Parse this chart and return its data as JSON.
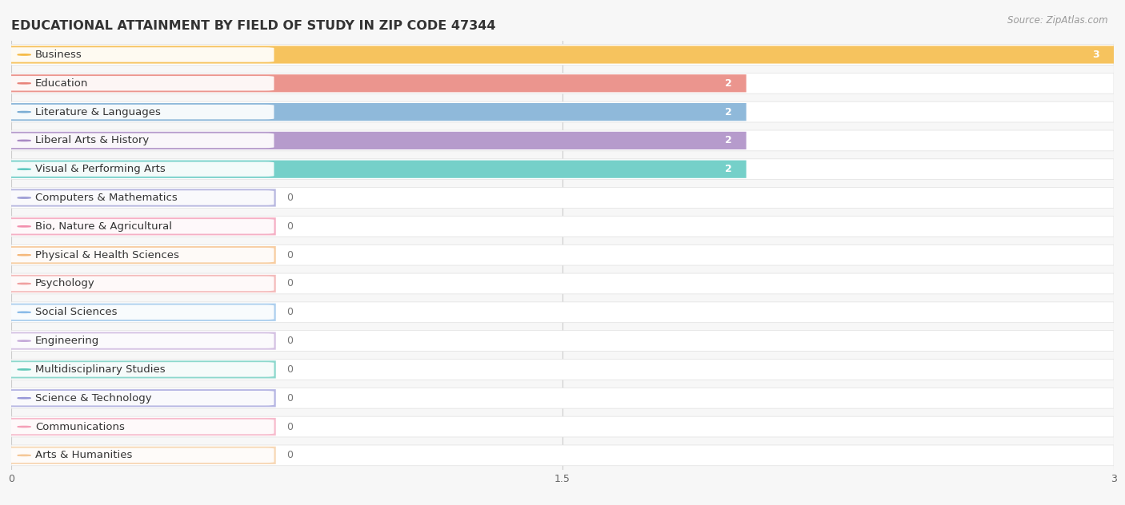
{
  "title": "EDUCATIONAL ATTAINMENT BY FIELD OF STUDY IN ZIP CODE 47344",
  "source": "Source: ZipAtlas.com",
  "categories": [
    "Business",
    "Education",
    "Literature & Languages",
    "Liberal Arts & History",
    "Visual & Performing Arts",
    "Computers & Mathematics",
    "Bio, Nature & Agricultural",
    "Physical & Health Sciences",
    "Psychology",
    "Social Sciences",
    "Engineering",
    "Multidisciplinary Studies",
    "Science & Technology",
    "Communications",
    "Arts & Humanities"
  ],
  "values": [
    3,
    2,
    2,
    2,
    2,
    0,
    0,
    0,
    0,
    0,
    0,
    0,
    0,
    0,
    0
  ],
  "colors": [
    "#F5B942",
    "#E8837A",
    "#7BADD4",
    "#A98AC4",
    "#5DC8C0",
    "#9B9BD4",
    "#F28FAD",
    "#F5B87A",
    "#F0A0A0",
    "#8ABBE8",
    "#C4A8D8",
    "#5DC8B8",
    "#9898D8",
    "#F5A0B8",
    "#F5C898"
  ],
  "xlim": [
    0,
    3
  ],
  "xticks": [
    0,
    1.5,
    3
  ],
  "background_color": "#f7f7f7",
  "row_bg_color": "#ffffff",
  "title_fontsize": 11.5,
  "source_fontsize": 8.5,
  "label_fontsize": 9.5,
  "value_fontsize": 9
}
